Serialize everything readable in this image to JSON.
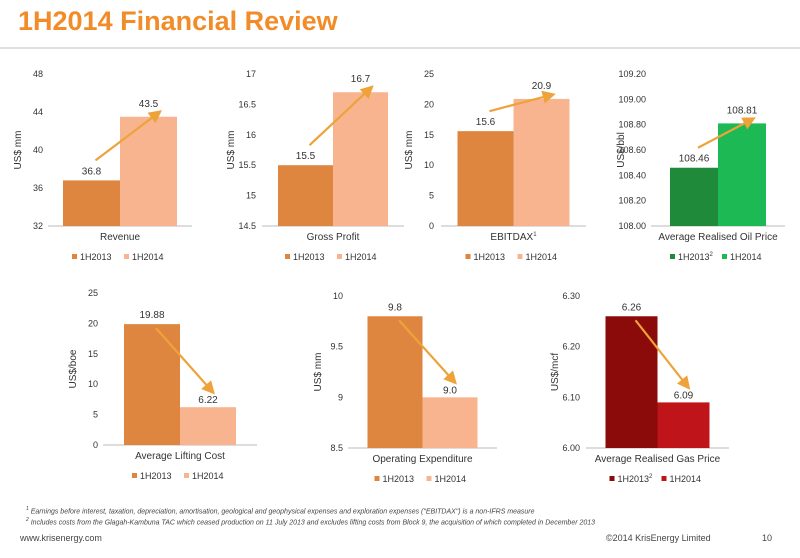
{
  "slide": {
    "title": "1H2014 Financial Review",
    "footnote_1": "Earnings before interest, taxation, depreciation, amortisation, geological and geophysical expenses and exploration expenses (\"EBITDAX\") is a non-IFRS measure",
    "footnote_2": "Includes costs from the Glagah-Kambuna TAC which ceased production on 11 July 2013 and excludes lifting costs from Block 9, the acquisition of which completed in December 2013",
    "footer_left": "www.krisenergy.com",
    "footer_right": "©2014 KrisEnergy Limited",
    "page_number": "10",
    "colors": {
      "title": "#f28c28",
      "arrow": "#eda33a"
    }
  },
  "chart_data": [
    {
      "type": "bar",
      "title": "Revenue",
      "title_sup": "",
      "ylabel": "US$ mm",
      "categories": [
        "1H2013",
        "1H2014"
      ],
      "values": [
        36.8,
        43.5
      ],
      "value_labels": [
        "36.8",
        "43.5"
      ],
      "ylim": [
        32,
        48
      ],
      "yticks": [
        "32",
        "36",
        "40",
        "44",
        "48"
      ],
      "colors": [
        "#de8640",
        "#f7b48f"
      ],
      "legend": [
        "1H2013",
        "1H2014"
      ],
      "legend_sup": [
        "",
        ""
      ],
      "trend": "up"
    },
    {
      "type": "bar",
      "title": "Gross Profit",
      "title_sup": "",
      "ylabel": "US$ mm",
      "categories": [
        "1H2013",
        "1H2014"
      ],
      "values": [
        15.5,
        16.7
      ],
      "value_labels": [
        "15.5",
        "16.7"
      ],
      "ylim": [
        14.5,
        17
      ],
      "yticks": [
        "14.5",
        "15",
        "15.5",
        "16",
        "16.5",
        "17"
      ],
      "colors": [
        "#de8640",
        "#f7b48f"
      ],
      "legend": [
        "1H2013",
        "1H2014"
      ],
      "legend_sup": [
        "",
        ""
      ],
      "trend": "up"
    },
    {
      "type": "bar",
      "title": "EBITDAX",
      "title_sup": "1",
      "ylabel": "US$ mm",
      "categories": [
        "1H2013",
        "1H2014"
      ],
      "values": [
        15.6,
        20.9
      ],
      "value_labels": [
        "15.6",
        "20.9"
      ],
      "ylim": [
        0,
        25
      ],
      "yticks": [
        "0",
        "5",
        "10",
        "15",
        "20",
        "25"
      ],
      "colors": [
        "#de8640",
        "#f7b48f"
      ],
      "legend": [
        "1H2013",
        "1H2014"
      ],
      "legend_sup": [
        "",
        ""
      ],
      "trend": "up"
    },
    {
      "type": "bar",
      "title": "Average Realised Oil Price",
      "title_sup": "",
      "ylabel": "US$/bbl",
      "categories": [
        "1H2013",
        "1H2014"
      ],
      "values": [
        108.46,
        108.81
      ],
      "value_labels": [
        "108.46",
        "108.81"
      ],
      "ylim": [
        108.0,
        109.2
      ],
      "yticks": [
        "108.00",
        "108.20",
        "108.40",
        "108.60",
        "108.80",
        "109.00",
        "109.20"
      ],
      "colors": [
        "#1e8a3a",
        "#1db954"
      ],
      "legend": [
        "1H2013",
        "1H2014"
      ],
      "legend_sup": [
        "2",
        ""
      ],
      "trend": "up"
    },
    {
      "type": "bar",
      "title": "Average Lifting Cost",
      "title_sup": "",
      "ylabel": "US$/boe",
      "categories": [
        "1H2013",
        "1H2014"
      ],
      "values": [
        19.88,
        6.22
      ],
      "value_labels": [
        "19.88",
        "6.22"
      ],
      "ylim": [
        0,
        25
      ],
      "yticks": [
        "0",
        "5",
        "10",
        "15",
        "20",
        "25"
      ],
      "colors": [
        "#de8640",
        "#f7b48f"
      ],
      "legend": [
        "1H2013",
        "1H2014"
      ],
      "legend_sup": [
        "",
        ""
      ],
      "trend": "down"
    },
    {
      "type": "bar",
      "title": "Operating Expenditure",
      "title_sup": "",
      "ylabel": "US$ mm",
      "categories": [
        "1H2013",
        "1H2014"
      ],
      "values": [
        9.8,
        9.0
      ],
      "value_labels": [
        "9.8",
        "9.0"
      ],
      "ylim": [
        8.5,
        10
      ],
      "yticks": [
        "8.5",
        "9",
        "9.5",
        "10"
      ],
      "colors": [
        "#de8640",
        "#f7b48f"
      ],
      "legend": [
        "1H2013",
        "1H2014"
      ],
      "legend_sup": [
        "",
        ""
      ],
      "trend": "down"
    },
    {
      "type": "bar",
      "title": "Average Realised Gas Price",
      "title_sup": "",
      "ylabel": "US$/mcf",
      "categories": [
        "1H2013",
        "1H2014"
      ],
      "values": [
        6.26,
        6.09
      ],
      "value_labels": [
        "6.26",
        "6.09"
      ],
      "ylim": [
        6.0,
        6.3
      ],
      "yticks": [
        "6.00",
        "6.10",
        "6.20",
        "6.30"
      ],
      "colors": [
        "#8b0a0a",
        "#c0141b"
      ],
      "legend": [
        "1H2013",
        "1H2014"
      ],
      "legend_sup": [
        "2",
        ""
      ],
      "trend": "down"
    }
  ]
}
